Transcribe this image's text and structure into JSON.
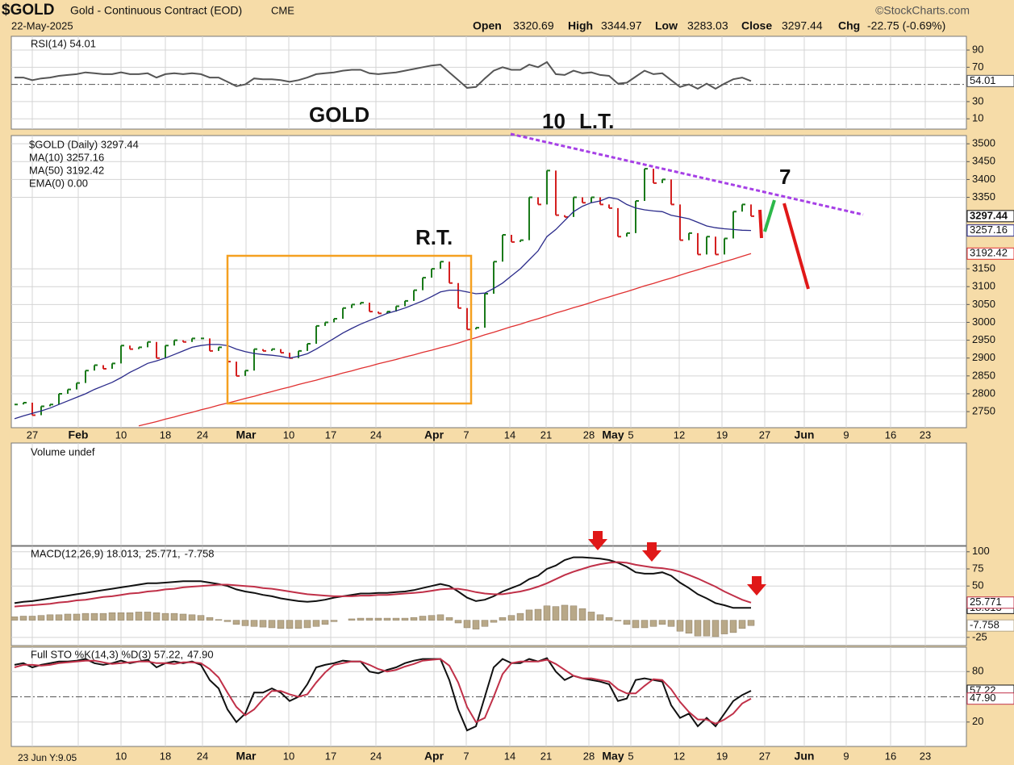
{
  "header": {
    "symbol": "$GOLD",
    "name": "Gold - Continuous Contract (EOD)",
    "exchange": "CME",
    "source": "©StockCharts.com",
    "date": "22-May-2025",
    "quote": [
      {
        "label": "Open",
        "value": 3320.69
      },
      {
        "label": "High",
        "value": 3344.97
      },
      {
        "label": "Low",
        "value": 3283.03
      },
      {
        "label": "Close",
        "value": 3297.44
      },
      {
        "label": "Chg",
        "value": "-22.75 (-0.69%)"
      }
    ]
  },
  "xticks": [
    "27",
    "Feb",
    "10",
    "18",
    "24",
    "Mar",
    "10",
    "17",
    "24",
    "Apr",
    "7",
    "14",
    "21",
    "28",
    "May",
    "5",
    "12",
    "19",
    "27",
    "Jun",
    "9",
    "16",
    "23"
  ],
  "footer": "23 Jun Y:9.05",
  "annotations": [
    {
      "text": "GOLD",
      "color": "#e0202a"
    },
    {
      "text": "R.T.",
      "color": "#a64de0"
    },
    {
      "text": "10",
      "color": "#2e8fd8"
    },
    {
      "text": "L.T.",
      "color": "#a64de0"
    },
    {
      "text": "7",
      "color": "#2e9ad8"
    }
  ],
  "chart_data": [
    {
      "type": "line",
      "ylim": [
        -2,
        106
      ],
      "yticks": [
        10,
        30,
        70,
        90
      ],
      "reference_line": 50,
      "tags": [
        "54.01"
      ],
      "series": [
        {
          "name": "RSI(14) 54.01",
          "color": "#555555",
          "values": [
            58,
            58,
            55,
            57,
            58,
            60,
            61,
            62,
            64,
            63,
            62,
            62,
            64,
            62,
            62,
            63,
            58,
            62,
            63,
            62,
            63,
            62,
            58,
            58,
            53,
            48,
            50,
            57,
            56,
            56,
            55,
            53,
            55,
            58,
            62,
            63,
            64,
            66,
            67,
            67,
            63,
            62,
            63,
            64,
            66,
            68,
            70,
            72,
            73,
            64,
            55,
            46,
            47,
            57,
            66,
            70,
            67,
            67,
            73,
            70,
            76,
            62,
            61,
            66,
            63,
            64,
            61,
            60,
            51,
            52,
            59,
            66,
            62,
            63,
            55,
            47,
            50,
            45,
            51,
            45,
            51,
            56,
            58,
            54.01
          ]
        }
      ]
    },
    {
      "type": "ohlc",
      "ylim": [
        2705,
        3523
      ],
      "yticks": [
        2750,
        2800,
        2850,
        2900,
        2950,
        3000,
        3050,
        3100,
        3150,
        3350,
        3400,
        3450,
        3500
      ],
      "tags": [
        "3297.44",
        "3257.16",
        "3192.42"
      ],
      "extra_legend": {
        "text": "EMA(0) 0.00",
        "color": "#1a7a1a"
      },
      "series": [
        {
          "name": "$GOLD (Daily) 3297.44",
          "color": "#111111",
          "up_color": "#1a7a1a",
          "down_color": "#d42020",
          "values": [
            2770,
            2775,
            2740,
            2765,
            2770,
            2800,
            2812,
            2830,
            2865,
            2880,
            2870,
            2885,
            2935,
            2925,
            2930,
            2945,
            2900,
            2935,
            2950,
            2945,
            2955,
            2955,
            2920,
            2930,
            2890,
            2850,
            2865,
            2925,
            2920,
            2925,
            2915,
            2900,
            2920,
            2940,
            2990,
            3000,
            3010,
            3040,
            3050,
            3055,
            3030,
            3025,
            3030,
            3045,
            3060,
            3090,
            3125,
            3150,
            3170,
            3110,
            3040,
            2980,
            2985,
            3080,
            3170,
            3245,
            3225,
            3230,
            3350,
            3330,
            3425,
            3300,
            3295,
            3350,
            3335,
            3350,
            3330,
            3320,
            3240,
            3250,
            3340,
            3430,
            3390,
            3400,
            3330,
            3230,
            3250,
            3190,
            3240,
            3190,
            3235,
            3310,
            3330,
            3297.44
          ]
        },
        {
          "name": "MA(10) 3257.16",
          "color": "#2a2a8a",
          "values": [
            2730,
            2738,
            2745,
            2752,
            2760,
            2770,
            2780,
            2790,
            2800,
            2812,
            2822,
            2832,
            2845,
            2860,
            2872,
            2885,
            2892,
            2900,
            2910,
            2920,
            2930,
            2935,
            2938,
            2938,
            2935,
            2925,
            2918,
            2913,
            2910,
            2908,
            2905,
            2900,
            2905,
            2912,
            2925,
            2940,
            2955,
            2970,
            2983,
            2995,
            3005,
            3015,
            3025,
            3032,
            3040,
            3050,
            3060,
            3072,
            3085,
            3090,
            3090,
            3085,
            3080,
            3082,
            3095,
            3110,
            3130,
            3150,
            3175,
            3200,
            3240,
            3260,
            3285,
            3310,
            3325,
            3335,
            3340,
            3350,
            3345,
            3330,
            3320,
            3315,
            3312,
            3310,
            3300,
            3295,
            3290,
            3280,
            3270,
            3265,
            3262,
            3260,
            3258,
            3257.16
          ]
        },
        {
          "name": "MA(50) 3192.42",
          "color": "#e03030",
          "values": [
            null,
            null,
            null,
            null,
            null,
            null,
            null,
            null,
            null,
            null,
            null,
            null,
            null,
            null,
            2710,
            2716,
            2722,
            2729,
            2735,
            2742,
            2748,
            2755,
            2761,
            2768,
            2774,
            2780,
            2787,
            2793,
            2800,
            2806,
            2813,
            2819,
            2826,
            2832,
            2838,
            2845,
            2851,
            2858,
            2864,
            2871,
            2877,
            2884,
            2890,
            2896,
            2903,
            2909,
            2916,
            2922,
            2929,
            2935,
            2942,
            2950,
            2957,
            2965,
            2972,
            2980,
            2988,
            2995,
            3003,
            3010,
            3018,
            3026,
            3033,
            3041,
            3048,
            3056,
            3064,
            3071,
            3079,
            3086,
            3094,
            3102,
            3109,
            3117,
            3124,
            3132,
            3140,
            3147,
            3155,
            3162,
            3170,
            3177,
            3185,
            3192.42
          ]
        }
      ]
    },
    {
      "type": "volume",
      "legend": "Volume undef"
    },
    {
      "type": "macd",
      "ylim": [
        -37,
        108
      ],
      "yticks": [
        -25,
        50,
        75,
        100
      ],
      "tags": [
        "18.013",
        "25.771",
        "-7.758"
      ],
      "series": [
        {
          "name": "MACD(12,26,9) 18.013,",
          "color": "#111111",
          "values": [
            25,
            27,
            28,
            30,
            32,
            34,
            36,
            38,
            40,
            42,
            44,
            46,
            48,
            50,
            52,
            54,
            54,
            55,
            56,
            57,
            57,
            57,
            55,
            53,
            50,
            45,
            42,
            40,
            37,
            35,
            32,
            30,
            28,
            27,
            28,
            30,
            33,
            35,
            37,
            39,
            39,
            40,
            40,
            41,
            42,
            44,
            47,
            50,
            53,
            50,
            42,
            33,
            28,
            30,
            35,
            42,
            47,
            52,
            60,
            65,
            75,
            80,
            88,
            92,
            92,
            91,
            90,
            88,
            84,
            78,
            70,
            68,
            68,
            70,
            65,
            55,
            47,
            38,
            32,
            25,
            22,
            18,
            18,
            18.013
          ]
        },
        {
          "name": "25.771,",
          "color": "#c03048",
          "values": [
            20,
            21,
            22,
            23,
            24,
            26,
            27,
            29,
            30,
            32,
            34,
            35,
            37,
            39,
            40,
            42,
            43,
            45,
            46,
            48,
            49,
            50,
            51,
            52,
            52,
            51,
            50,
            49,
            47,
            46,
            44,
            42,
            40,
            38,
            37,
            36,
            35,
            35,
            35,
            36,
            36,
            37,
            37,
            38,
            39,
            40,
            41,
            43,
            45,
            46,
            46,
            44,
            41,
            39,
            38,
            38,
            40,
            42,
            45,
            49,
            54,
            60,
            66,
            71,
            75,
            79,
            82,
            84,
            85,
            84,
            81,
            79,
            77,
            76,
            74,
            71,
            66,
            61,
            55,
            49,
            42,
            36,
            30,
            25.771
          ]
        },
        {
          "name": "-7.758",
          "color": "#b8a888",
          "values": [
            5,
            6,
            6,
            7,
            8,
            8,
            9,
            9,
            10,
            10,
            10,
            11,
            11,
            11,
            12,
            12,
            11,
            10,
            10,
            9,
            8,
            7,
            4,
            1,
            -2,
            -6,
            -8,
            -9,
            -10,
            -11,
            -12,
            -12,
            -12,
            -11,
            -9,
            -6,
            -2,
            0,
            2,
            3,
            3,
            3,
            3,
            3,
            3,
            4,
            6,
            7,
            8,
            4,
            -4,
            -11,
            -13,
            -9,
            -3,
            4,
            7,
            10,
            15,
            16,
            21,
            20,
            22,
            21,
            17,
            12,
            8,
            4,
            -1,
            -6,
            -11,
            -11,
            -9,
            -6,
            -9,
            -16,
            -19,
            -23,
            -23,
            -24,
            -20,
            -18,
            -12,
            -7.758
          ]
        }
      ]
    },
    {
      "type": "line",
      "ylim": [
        -9,
        109
      ],
      "yticks": [
        20,
        80
      ],
      "reference_line": 50,
      "tags": [
        "57.22",
        "47.90"
      ],
      "series": [
        {
          "name": "Full STO %K(14,3) %D(3) 57.22,",
          "color": "#111111",
          "values": [
            88,
            90,
            85,
            88,
            90,
            92,
            92,
            93,
            95,
            90,
            88,
            90,
            93,
            90,
            92,
            94,
            85,
            90,
            92,
            90,
            92,
            88,
            70,
            60,
            35,
            20,
            30,
            55,
            55,
            60,
            55,
            45,
            50,
            65,
            85,
            88,
            90,
            93,
            92,
            92,
            80,
            78,
            82,
            85,
            90,
            93,
            95,
            95,
            95,
            70,
            35,
            10,
            15,
            50,
            85,
            95,
            90,
            90,
            95,
            92,
            96,
            80,
            70,
            75,
            72,
            70,
            68,
            65,
            45,
            48,
            70,
            72,
            70,
            68,
            40,
            25,
            30,
            15,
            25,
            15,
            30,
            45,
            52,
            57.22
          ]
        },
        {
          "name": "47.90",
          "color": "#c03048",
          "values": [
            85,
            88,
            88,
            87,
            88,
            90,
            91,
            92,
            93,
            93,
            91,
            89,
            90,
            91,
            92,
            92,
            90,
            90,
            89,
            91,
            91,
            90,
            83,
            73,
            55,
            38,
            28,
            35,
            47,
            57,
            57,
            53,
            50,
            53,
            67,
            79,
            88,
            90,
            92,
            92,
            88,
            83,
            80,
            82,
            86,
            89,
            93,
            94,
            95,
            87,
            67,
            38,
            20,
            25,
            50,
            77,
            90,
            92,
            92,
            92,
            94,
            89,
            82,
            75,
            72,
            72,
            70,
            68,
            59,
            54,
            54,
            63,
            71,
            70,
            59,
            44,
            32,
            23,
            23,
            18,
            23,
            30,
            42,
            47.9
          ]
        }
      ]
    }
  ]
}
